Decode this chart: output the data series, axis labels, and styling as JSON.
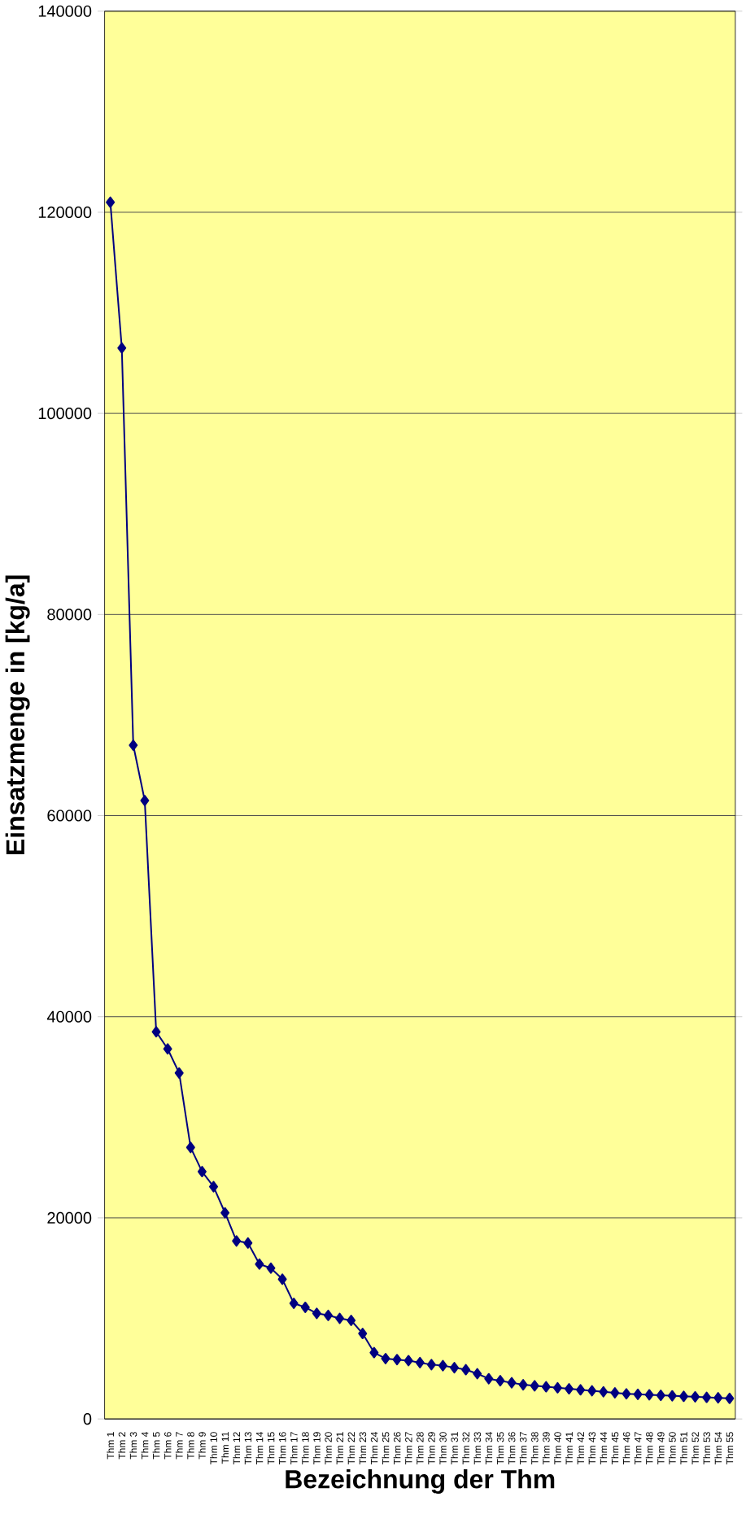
{
  "chart_data": {
    "type": "line",
    "xlabel": "Bezeichnung der Thm",
    "ylabel": "Einsatzmenge in [kg/a]",
    "categories": [
      "Thm 1",
      "Thm 2",
      "Thm 3",
      "Thm 4",
      "Thm 5",
      "Thm 6",
      "Thm 7",
      "Thm 8",
      "Thm 9",
      "Thm 10",
      "Thm 11",
      "Thm 12",
      "Thm 13",
      "Thm 14",
      "Thm 15",
      "Thm 16",
      "Thm 17",
      "Thm 18",
      "Thm 19",
      "Thm 20",
      "Thm 21",
      "Thm 22",
      "Thm 23",
      "Thm 24",
      "Thm 25",
      "Thm 26",
      "Thm 27",
      "Thm 28",
      "Thm 29",
      "Thm 30",
      "Thm 31",
      "Thm 32",
      "Thm 33",
      "Thm 34",
      "Thm 35",
      "Thm 36",
      "Thm 37",
      "Thm 38",
      "Thm 39",
      "Thm 40",
      "Thm 41",
      "Thm 42",
      "Thm 43",
      "Thm 44",
      "Thm 45",
      "Thm 46",
      "Thm 47",
      "Thm 48",
      "Thm 49",
      "Thm 50",
      "Thm 51",
      "Thm 52",
      "Thm 53",
      "Thm 54",
      "Thm 55"
    ],
    "values": [
      121000,
      106500,
      67000,
      61500,
      38500,
      36800,
      34400,
      27000,
      24600,
      23100,
      20500,
      17700,
      17500,
      15400,
      15000,
      13900,
      11500,
      11100,
      10500,
      10300,
      10000,
      9800,
      8500,
      6600,
      6000,
      5900,
      5800,
      5600,
      5400,
      5300,
      5100,
      4900,
      4500,
      4000,
      3800,
      3600,
      3400,
      3300,
      3200,
      3100,
      3000,
      2900,
      2800,
      2700,
      2600,
      2500,
      2450,
      2400,
      2350,
      2300,
      2250,
      2200,
      2150,
      2100,
      2050
    ],
    "color": "#000080",
    "ylim": [
      0,
      140000
    ],
    "yticks": [
      0,
      20000,
      40000,
      60000,
      80000,
      100000,
      120000,
      140000
    ],
    "grid": "y",
    "marker": "diamond"
  }
}
